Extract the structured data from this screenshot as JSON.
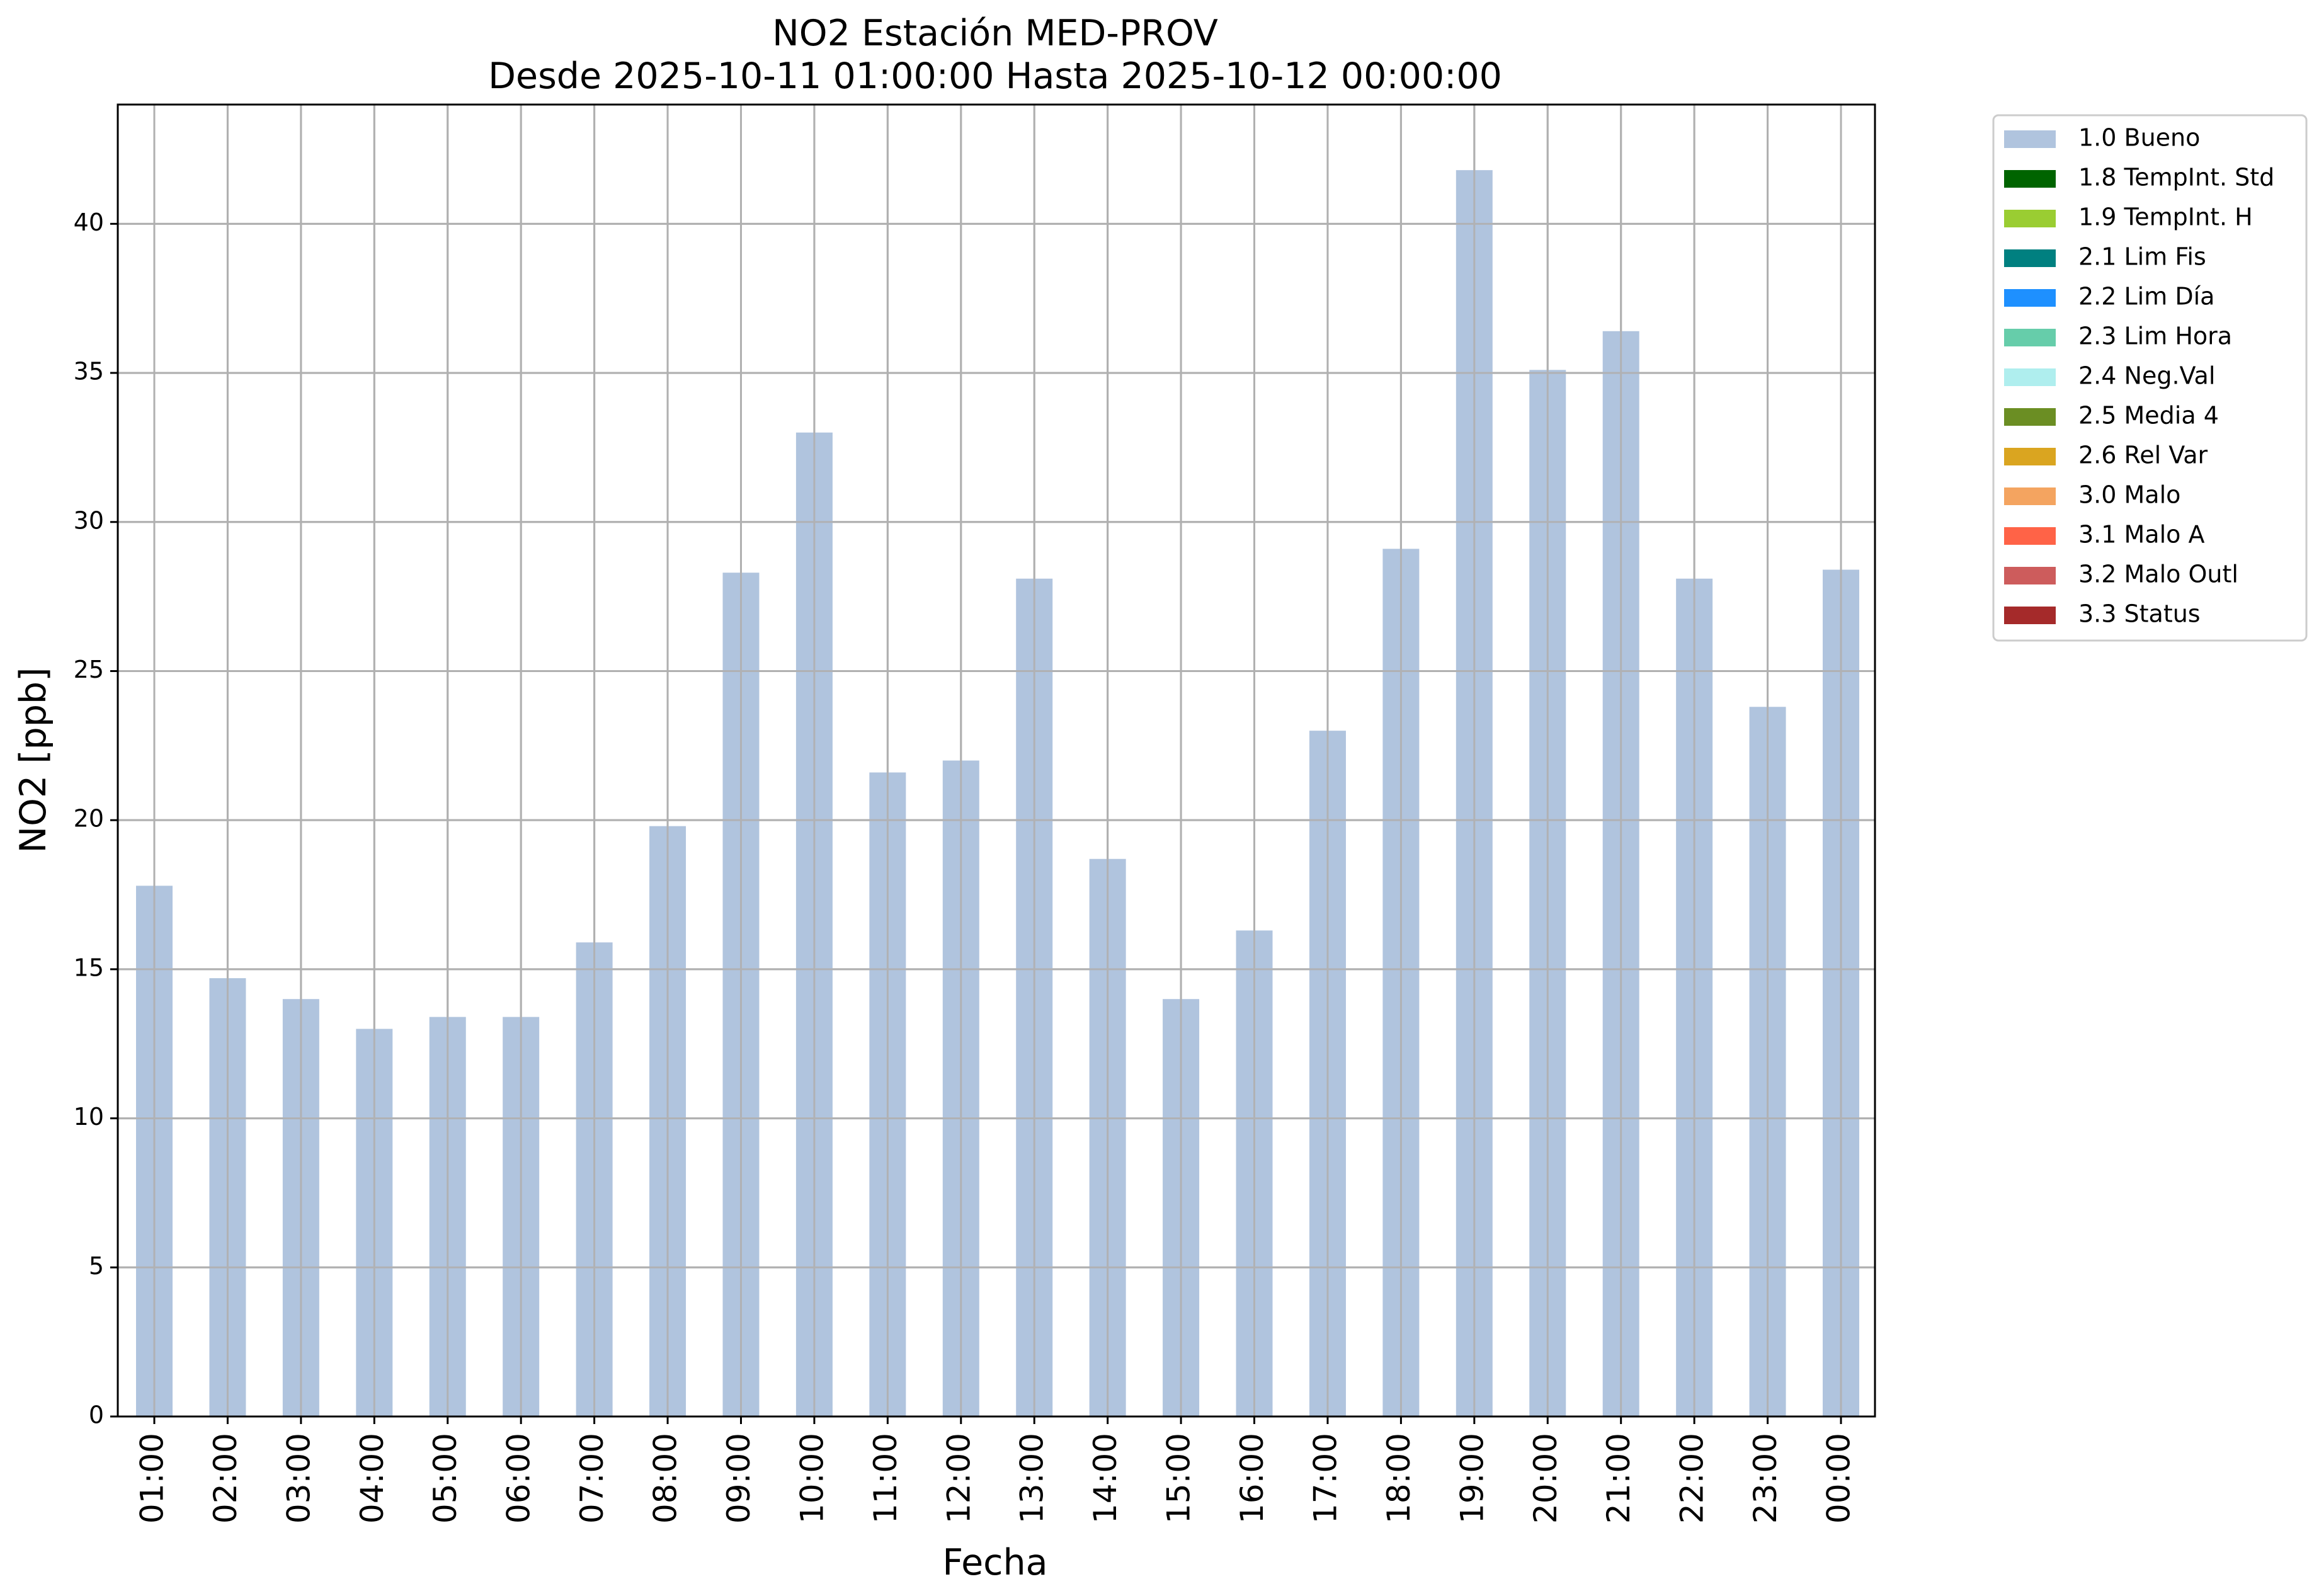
{
  "chart_data": {
    "type": "bar",
    "title": "NO2 Estación MED-PROV",
    "subtitle": "Desde 2025-10-11 01:00:00 Hasta 2025-10-12 00:00:00",
    "xlabel": "Fecha",
    "ylabel": "NO2 [ppb]",
    "ylim": [
      0,
      44
    ],
    "yticks": [
      0,
      5,
      10,
      15,
      20,
      25,
      30,
      35,
      40
    ],
    "grid": true,
    "legend_position": "outside-top-right",
    "categories": [
      "01:00",
      "02:00",
      "03:00",
      "04:00",
      "05:00",
      "06:00",
      "07:00",
      "08:00",
      "09:00",
      "10:00",
      "11:00",
      "12:00",
      "13:00",
      "14:00",
      "15:00",
      "16:00",
      "17:00",
      "18:00",
      "19:00",
      "20:00",
      "21:00",
      "22:00",
      "23:00",
      "00:00"
    ],
    "series": [
      {
        "name": "1.0 Bueno",
        "color": "#b0c4de",
        "values": [
          17.8,
          14.7,
          14.0,
          13.0,
          13.4,
          13.4,
          15.9,
          19.8,
          28.3,
          33.0,
          21.6,
          22.0,
          28.1,
          18.7,
          14.0,
          16.3,
          23.0,
          29.1,
          41.8,
          35.1,
          36.4,
          28.1,
          23.8,
          28.4
        ]
      }
    ],
    "legend": [
      {
        "label": "1.0 Bueno",
        "color": "#b0c4de"
      },
      {
        "label": "1.8 TempInt. Std",
        "color": "#006400"
      },
      {
        "label": "1.9 TempInt. H",
        "color": "#9acd32"
      },
      {
        "label": "2.1 Lim Fis",
        "color": "#008080"
      },
      {
        "label": "2.2 Lim Día",
        "color": "#1e90ff"
      },
      {
        "label": "2.3 Lim Hora",
        "color": "#66cdaa"
      },
      {
        "label": "2.4 Neg.Val",
        "color": "#afeeee"
      },
      {
        "label": "2.5 Media 4",
        "color": "#6b8e23"
      },
      {
        "label": "2.6 Rel Var",
        "color": "#daa520"
      },
      {
        "label": "3.0 Malo",
        "color": "#f4a460"
      },
      {
        "label": "3.1 Malo A",
        "color": "#ff6347"
      },
      {
        "label": "3.2 Malo Outl",
        "color": "#cd5c5c"
      },
      {
        "label": "3.3 Status",
        "color": "#a52a2a"
      }
    ]
  }
}
